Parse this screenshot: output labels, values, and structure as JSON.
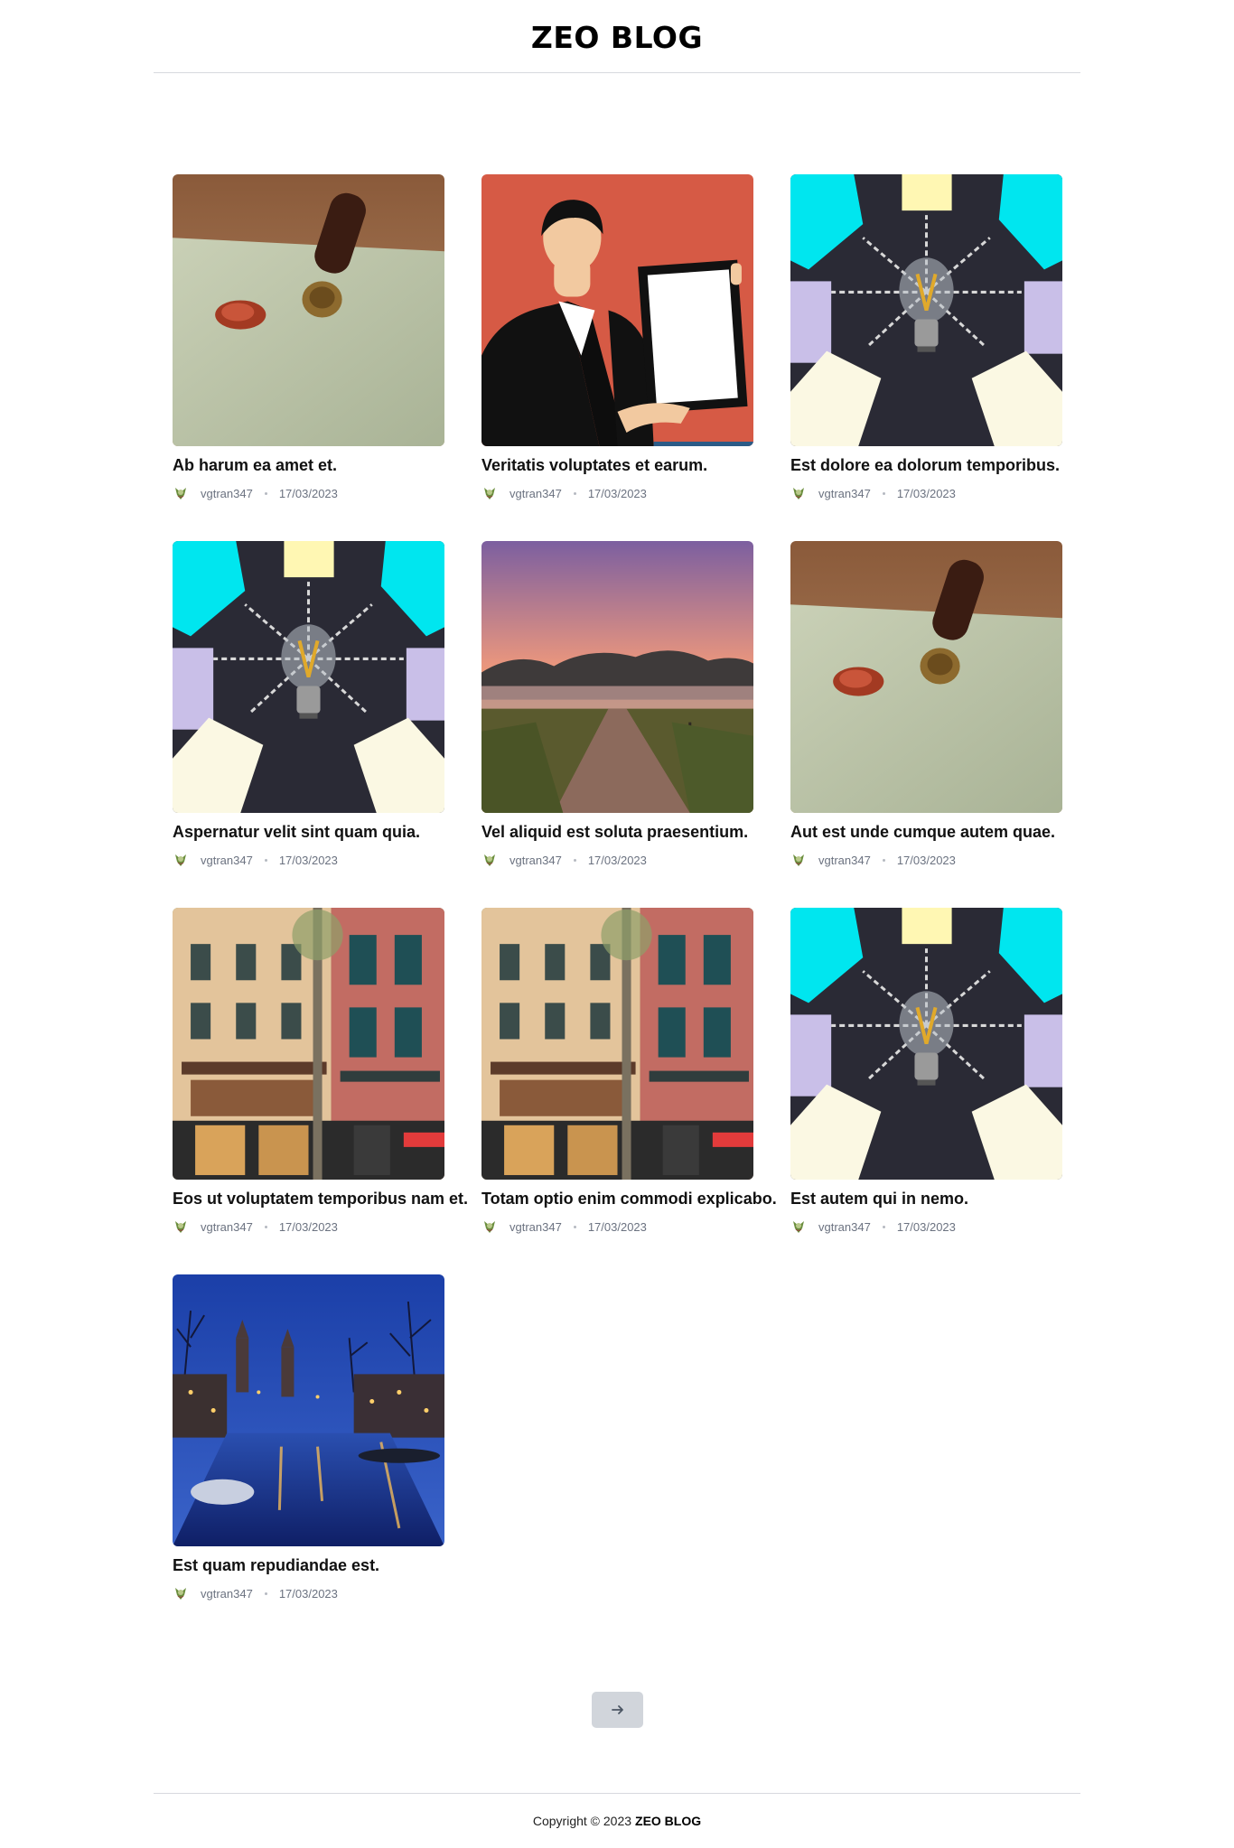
{
  "header": {
    "site_title": "ZEO BLOG"
  },
  "posts": [
    {
      "title": "Ab harum ea amet et.",
      "author": "vgtran347",
      "date": "17/03/2023",
      "image": "wax-seal"
    },
    {
      "title": "Veritatis voluptates et earum.",
      "author": "vgtran347",
      "date": "17/03/2023",
      "image": "businesswoman-frame"
    },
    {
      "title": "Est dolore ea dolorum temporibus.",
      "author": "vgtran347",
      "date": "17/03/2023",
      "image": "lightbulb-notes"
    },
    {
      "title": "Aspernatur velit sint quam quia.",
      "author": "vgtran347",
      "date": "17/03/2023",
      "image": "lightbulb-notes"
    },
    {
      "title": "Vel aliquid est soluta praesentium.",
      "author": "vgtran347",
      "date": "17/03/2023",
      "image": "sunset-path"
    },
    {
      "title": "Aut est unde cumque autem quae.",
      "author": "vgtran347",
      "date": "17/03/2023",
      "image": "wax-seal"
    },
    {
      "title": "Eos ut voluptatem temporibus nam et.",
      "author": "vgtran347",
      "date": "17/03/2023",
      "image": "city-buildings"
    },
    {
      "title": "Totam optio enim commodi explicabo.",
      "author": "vgtran347",
      "date": "17/03/2023",
      "image": "city-buildings"
    },
    {
      "title": "Est autem qui in nemo.",
      "author": "vgtran347",
      "date": "17/03/2023",
      "image": "lightbulb-notes"
    },
    {
      "title": "Est quam repudiandae est.",
      "author": "vgtran347",
      "date": "17/03/2023",
      "image": "canal-night"
    }
  ],
  "pagination": {
    "next_icon": "arrow-right-icon"
  },
  "footer": {
    "copyright": "Copyright © 2023",
    "brand": "ZEO BLOG"
  },
  "colors": {
    "pager_bg": "#d1d5db",
    "meta_text": "#6b7280",
    "divider": "#d7d9de"
  }
}
